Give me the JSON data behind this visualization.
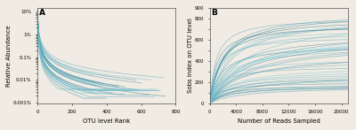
{
  "panel_A": {
    "title": "A",
    "xlabel": "OTU level Rank",
    "ylabel": "Relative Abundance",
    "xlim": [
      0,
      800
    ],
    "ylim": [
      0.00095,
      15
    ],
    "yticks": [
      0.001,
      0.01,
      0.1,
      1,
      10
    ],
    "ytick_labels": [
      "0.001%",
      "0.01%",
      "0.1%",
      "1%",
      "10%"
    ],
    "n_curves": 32,
    "x_max": 800
  },
  "panel_B": {
    "title": "B",
    "xlabel": "Number of Reads Sampled",
    "ylabel": "Sobs index on OTU level",
    "xlim": [
      0,
      21000
    ],
    "ylim": [
      0,
      900
    ],
    "yticks": [
      0,
      200,
      400,
      600,
      800
    ],
    "ytick_labels": [
      "0",
      "200",
      "400",
      "600",
      "800"
    ],
    "xticks": [
      0,
      4000,
      8000,
      12000,
      16000,
      20000
    ],
    "xtick_labels": [
      "0",
      "4000",
      "8000",
      "12000",
      "16000",
      "20000"
    ],
    "n_curves": 40,
    "x_max": 21000
  },
  "bg_color": "#f0ebe3",
  "line_alpha": 0.55,
  "line_width": 0.5,
  "teal_dark": "#1a6e8a",
  "teal_mid": "#2a9bb5",
  "teal_light": "#7acfdf"
}
